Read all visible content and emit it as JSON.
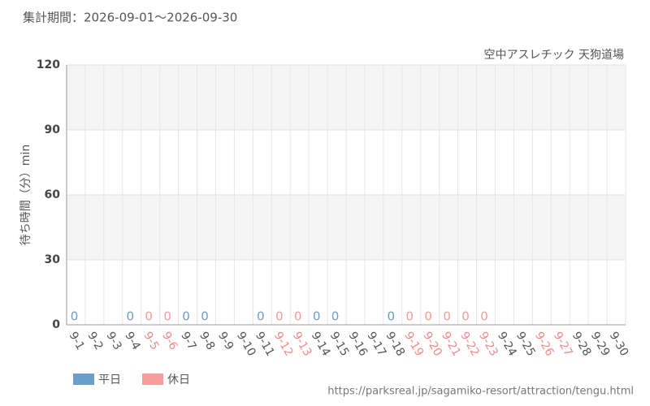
{
  "chart_data": {
    "type": "bar",
    "title": "集計期間：2026-09-01～2026-09-30",
    "subtitle": "空中アスレチック 天狗道場",
    "y_label": "待ち時間（分）min",
    "source": "https://parksreal.jp/sagamiko-resort/attraction/tengu.html",
    "categories": [
      "9-1",
      "9-2",
      "9-3",
      "9-4",
      "9-5",
      "9-6",
      "9-7",
      "9-8",
      "9-9",
      "9-10",
      "9-11",
      "9-12",
      "9-13",
      "9-14",
      "9-15",
      "9-16",
      "9-17",
      "9-18",
      "9-19",
      "9-20",
      "9-21",
      "9-22",
      "9-23",
      "9-24",
      "9-25",
      "9-26",
      "9-27",
      "9-28",
      "9-29",
      "9-30"
    ],
    "category_colors": [
      "#555",
      "#555",
      "#555",
      "#555",
      "#f08a8a",
      "#f08a8a",
      "#555",
      "#555",
      "#555",
      "#555",
      "#555",
      "#f08a8a",
      "#f08a8a",
      "#555",
      "#555",
      "#555",
      "#555",
      "#555",
      "#f08a8a",
      "#f08a8a",
      "#f08a8a",
      "#f08a8a",
      "#f08a8a",
      "#555",
      "#555",
      "#f08a8a",
      "#f08a8a",
      "#555",
      "#555",
      "#555"
    ],
    "series": [
      {
        "name": "平日",
        "color": "#6b9ec8",
        "values": [
          0,
          null,
          null,
          0,
          null,
          null,
          0,
          0,
          null,
          null,
          0,
          null,
          null,
          0,
          0,
          null,
          null,
          0,
          null,
          null,
          null,
          null,
          null,
          null,
          null,
          null,
          null,
          null,
          null,
          null
        ]
      },
      {
        "name": "休日",
        "color": "#f79c9c",
        "values": [
          null,
          null,
          null,
          null,
          0,
          0,
          null,
          null,
          null,
          null,
          null,
          0,
          0,
          null,
          null,
          null,
          null,
          null,
          0,
          0,
          0,
          0,
          0,
          null,
          null,
          null,
          null,
          null,
          null,
          null
        ]
      }
    ],
    "ylim": [
      0,
      120
    ],
    "yticks": [
      0,
      30,
      60,
      90,
      120
    ],
    "grid": true,
    "bands": true,
    "legend": "bottom-left"
  }
}
